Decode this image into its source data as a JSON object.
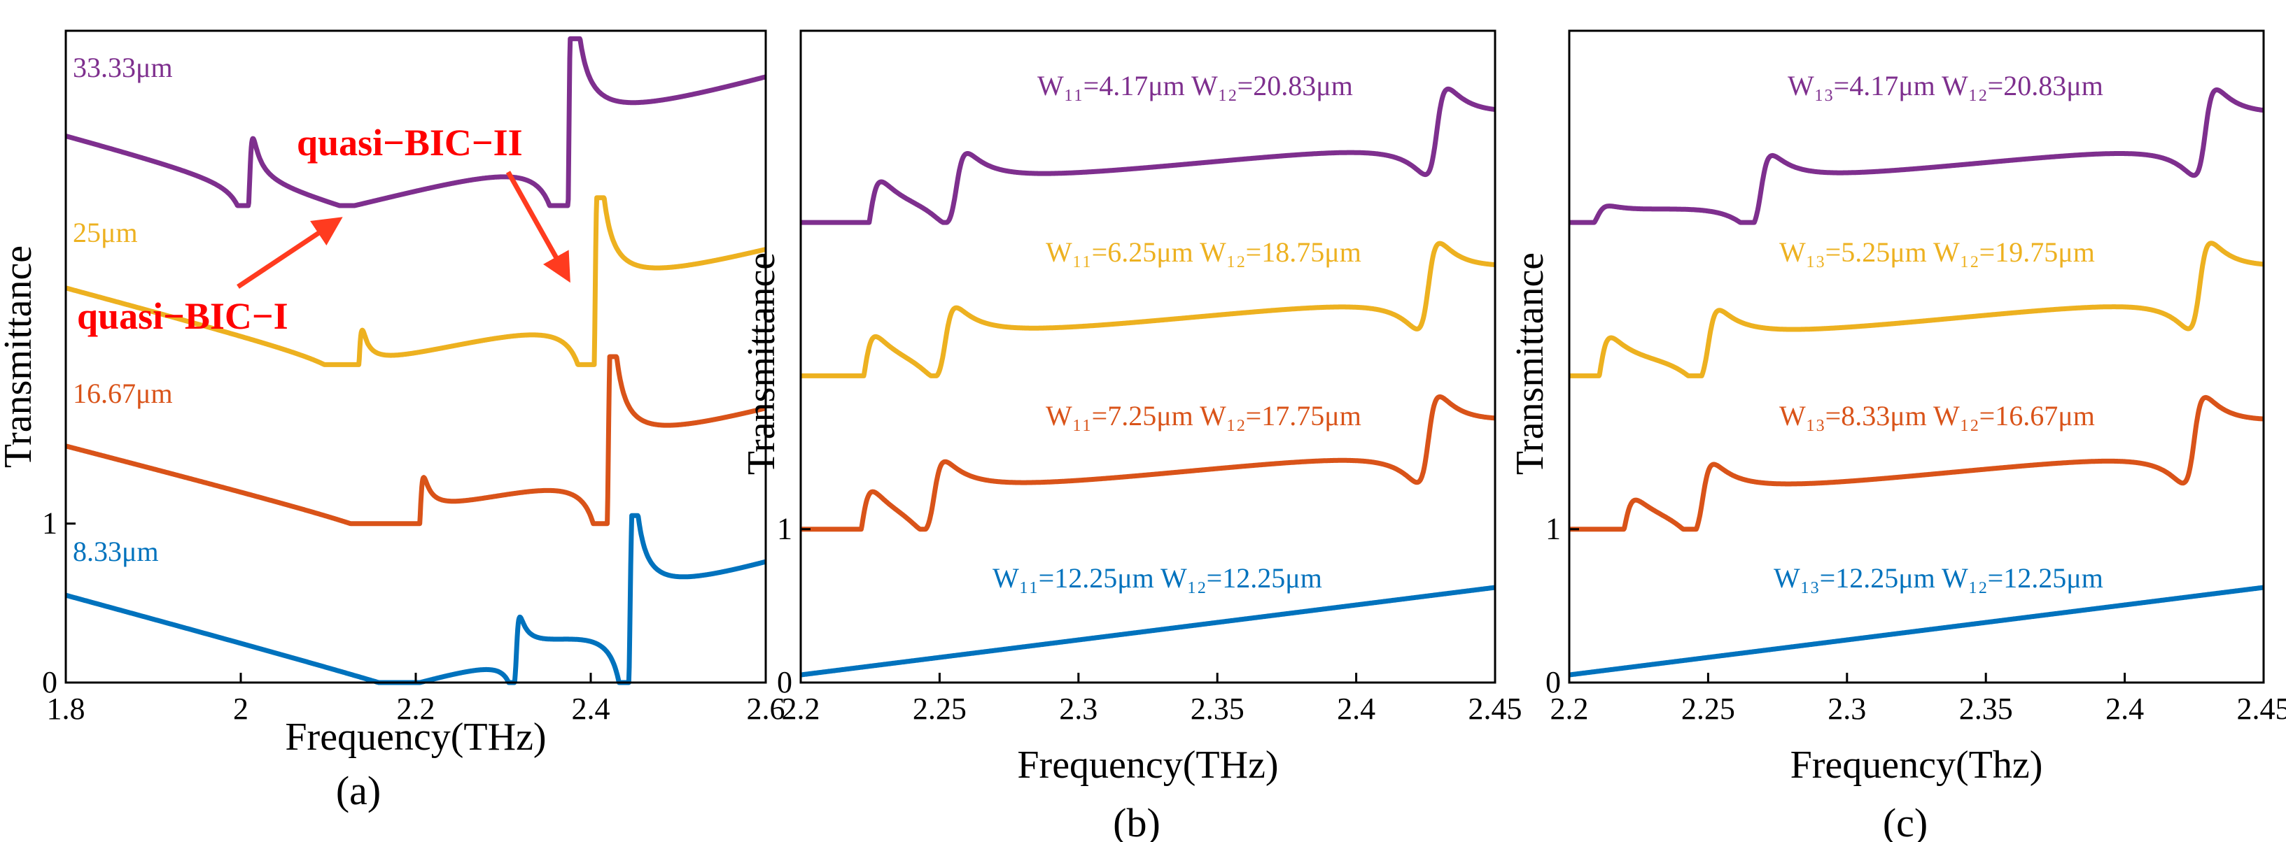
{
  "colors": {
    "purple": "#7e2f8e",
    "yellow": "#edb120",
    "orange": "#d95319",
    "blue": "#0072bd",
    "arrow": "#ff3b1f",
    "annotation": "#ff0000"
  },
  "chart_data": [
    {
      "type": "line",
      "panel_label": "(a)",
      "xlabel": "Frequency(THz)",
      "ylabel": "Transmittance",
      "xlim": [
        1.8,
        2.6
      ],
      "xticks": [
        "1.8",
        "2",
        "2.2",
        "2.4",
        "2.6"
      ],
      "yticks": [
        "0",
        "1"
      ],
      "ylim": [
        0,
        4.1
      ],
      "offset_per_curve": 1,
      "annotations": [
        {
          "text": "quasi−BIC−I"
        },
        {
          "text": "quasi−BIC−II"
        }
      ],
      "series": [
        {
          "name": "8.33μm",
          "color": "blue",
          "dip": 2.18,
          "slope_left": 1.48,
          "slope_right": 1.7,
          "res1": {
            "f": 2.315,
            "a": 1.0
          },
          "res2": {
            "f": 2.445,
            "a": 1.15
          }
        },
        {
          "name": "16.67μm",
          "color": "orange",
          "dip": 2.16,
          "slope_left": 1.4,
          "slope_right": 1.55,
          "res1": {
            "f": 2.205,
            "a": 1.1
          },
          "res2": {
            "f": 2.42,
            "a": 1.3
          }
        },
        {
          "name": "25μm",
          "color": "yellow",
          "dip": 2.145,
          "slope_left": 1.45,
          "slope_right": 1.5,
          "res1": {
            "f": 2.135,
            "a": 1.05
          },
          "res2": {
            "f": 2.405,
            "a": 1.4
          }
        },
        {
          "name": "33.33μm",
          "color": "purple",
          "dip": 2.12,
          "slope_left": 1.45,
          "slope_right": 1.6,
          "res1": {
            "f": 2.01,
            "a": 1.3
          },
          "res2": {
            "f": 2.375,
            "a": 1.6
          }
        }
      ]
    },
    {
      "type": "line",
      "panel_label": "(b)",
      "xlabel": "Frequency(THz)",
      "ylabel": "Transmittance",
      "xlim": [
        2.2,
        2.45
      ],
      "xticks": [
        "2.2",
        "2.25",
        "2.3",
        "2.35",
        "2.4",
        "2.45"
      ],
      "yticks": [
        "0",
        "1"
      ],
      "ylim": [
        0,
        4.25
      ],
      "offset_per_curve": 1,
      "series": [
        {
          "name": "W₁₁=12.25μm  W₁₂=12.25μm",
          "color": "blue",
          "base": 0.05,
          "end": 0.62,
          "res": []
        },
        {
          "name": "W₁₁=7.25μm  W₁₂=17.75μm",
          "color": "orange",
          "base": 0.05,
          "end": 0.62,
          "res": [
            {
              "f": 2.222,
              "a": 1.0
            },
            {
              "f": 2.248,
              "a": 1.0
            },
            {
              "f": 2.426,
              "a": 1.2
            }
          ]
        },
        {
          "name": "W₁₁=6.25μm  W₁₂=18.75μm",
          "color": "yellow",
          "base": 0.05,
          "end": 0.62,
          "res": [
            {
              "f": 2.223,
              "a": 1.0
            },
            {
              "f": 2.252,
              "a": 1.0
            },
            {
              "f": 2.426,
              "a": 1.2
            }
          ]
        },
        {
          "name": "W₁₁=4.17μm  W₁₂=20.83μm",
          "color": "purple",
          "base": 0.05,
          "end": 0.62,
          "res": [
            {
              "f": 2.225,
              "a": 1.0
            },
            {
              "f": 2.256,
              "a": 1.0
            },
            {
              "f": 2.429,
              "a": 1.2
            }
          ]
        }
      ]
    },
    {
      "type": "line",
      "panel_label": "(c)",
      "xlabel": "Frequency(Thz)",
      "ylabel": "Transmittance",
      "xlim": [
        2.2,
        2.45
      ],
      "xticks": [
        "2.2",
        "2.25",
        "2.3",
        "2.35",
        "2.4",
        "2.45"
      ],
      "yticks": [
        "0",
        "1"
      ],
      "ylim": [
        0,
        4.25
      ],
      "offset_per_curve": 1,
      "series": [
        {
          "name": "W₁₃=12.25μm  W₁₂=12.25μm",
          "color": "blue",
          "base": 0.05,
          "end": 0.62,
          "res": []
        },
        {
          "name": "W₁₃=8.33μm  W₁₂=16.67μm",
          "color": "orange",
          "base": 0.05,
          "end": 0.62,
          "res": [
            {
              "f": 2.22,
              "a": 0.75
            },
            {
              "f": 2.248,
              "a": 1.0
            },
            {
              "f": 2.425,
              "a": 1.2
            }
          ]
        },
        {
          "name": "W₁₃=5.25μm  W₁₂=19.75μm",
          "color": "yellow",
          "base": 0.05,
          "end": 0.62,
          "res": [
            {
              "f": 2.211,
              "a": 1.0
            },
            {
              "f": 2.25,
              "a": 1.0
            },
            {
              "f": 2.427,
              "a": 1.2
            }
          ]
        },
        {
          "name": "W₁₃=4.17μm  W₁₂=20.83μm",
          "color": "purple",
          "base": 0.05,
          "end": 0.62,
          "res": [
            {
              "f": 2.21,
              "a": 0.3
            },
            {
              "f": 2.269,
              "a": 1.0
            },
            {
              "f": 2.429,
              "a": 1.2
            }
          ]
        }
      ]
    }
  ]
}
